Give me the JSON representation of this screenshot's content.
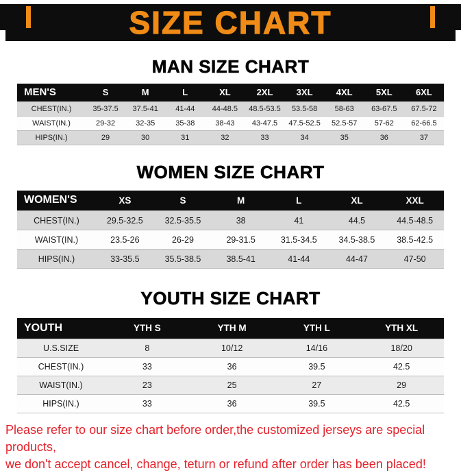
{
  "banner": {
    "title": "SIZE CHART"
  },
  "sections": [
    {
      "heading": "MAN SIZE CHART",
      "table": {
        "header": [
          "MEN'S",
          "S",
          "M",
          "L",
          "XL",
          "2XL",
          "3XL",
          "4XL",
          "5XL",
          "6XL"
        ],
        "rows": [
          [
            "CHEST(IN.)",
            "35-37.5",
            "37.5-41",
            "41-44",
            "44-48.5",
            "48.5-53.5",
            "53.5-58",
            "58-63",
            "63-67.5",
            "67.5-72"
          ],
          [
            "WAIST(IN.)",
            "29-32",
            "32-35",
            "35-38",
            "38-43",
            "43-47.5",
            "47.5-52.5",
            "52.5-57",
            "57-62",
            "62-66.5"
          ],
          [
            "HIPS(IN.)",
            "29",
            "30",
            "31",
            "32",
            "33",
            "34",
            "35",
            "36",
            "37"
          ]
        ]
      }
    },
    {
      "heading": "WOMEN SIZE CHART",
      "table": {
        "header": [
          "WOMEN'S",
          "XS",
          "S",
          "M",
          "L",
          "XL",
          "XXL"
        ],
        "rows": [
          [
            "CHEST(IN.)",
            "29.5-32.5",
            "32.5-35.5",
            "38",
            "41",
            "44.5",
            "44.5-48.5"
          ],
          [
            "WAIST(IN.)",
            "23.5-26",
            "26-29",
            "29-31.5",
            "31.5-34.5",
            "34.5-38.5",
            "38.5-42.5"
          ],
          [
            "HIPS(IN.)",
            "33-35.5",
            "35.5-38.5",
            "38.5-41",
            "41-44",
            "44-47",
            "47-50"
          ]
        ]
      }
    },
    {
      "heading": "YOUTH SIZE CHART",
      "table": {
        "header": [
          "YOUTH",
          "YTH S",
          "YTH M",
          "YTH L",
          "YTH XL"
        ],
        "rows": [
          [
            "U.S.SIZE",
            "8",
            "10/12",
            "14/16",
            "18/20"
          ],
          [
            "CHEST(IN.)",
            "33",
            "36",
            "39.5",
            "42.5"
          ],
          [
            "WAIST(IN.)",
            "23",
            "25",
            "27",
            "29"
          ],
          [
            "HIPS(IN.)",
            "33",
            "36",
            "39.5",
            "42.5"
          ]
        ]
      }
    }
  ],
  "footer": {
    "line1": "Please refer to our size chart before order,the customized jerseys are special products,",
    "line2": "we don't accept cancel, change, teturn or refund after order has been placed!"
  },
  "colors": {
    "banner_bg": "#0d0d0d",
    "banner_text": "#ef8b16",
    "header_row_bg": "#0d0d0d",
    "header_row_text": "#ffffff",
    "stripe_row_bg": "#d9d9d9",
    "stripe_row_light_bg": "#ebebeb",
    "footer_text": "#e4222b"
  }
}
